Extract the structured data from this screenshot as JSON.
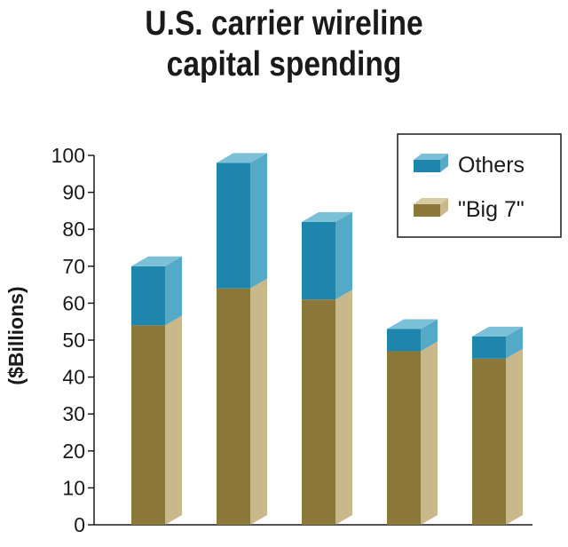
{
  "chart_data": {
    "type": "bar",
    "stacked": true,
    "three_d": true,
    "title": "U.S. carrier wireline capital spending",
    "title_lines": [
      "U.S. carrier wireline",
      "capital spending"
    ],
    "ylabel": "($Billions)",
    "xlabel": "",
    "ylim": [
      0,
      100
    ],
    "yticks": [
      0,
      10,
      20,
      30,
      40,
      50,
      60,
      70,
      80,
      90,
      100
    ],
    "categories": [
      "",
      "",
      "",
      "",
      ""
    ],
    "series": [
      {
        "name": "\"Big 7\"",
        "values": [
          54,
          64,
          61,
          47,
          45
        ],
        "color": "#8c7838",
        "side_color": "#c9b88a",
        "top_color": "#d8cba4"
      },
      {
        "name": "Others",
        "values": [
          16,
          34,
          21,
          6,
          6
        ],
        "color": "#1e86ac",
        "side_color": "#54a9c7",
        "top_color": "#7cc0d8"
      }
    ],
    "legend": {
      "position": "top-right",
      "order": [
        "Others",
        "\"Big 7\""
      ],
      "labels": [
        "Others",
        "\"Big 7\""
      ]
    },
    "grid": false
  }
}
